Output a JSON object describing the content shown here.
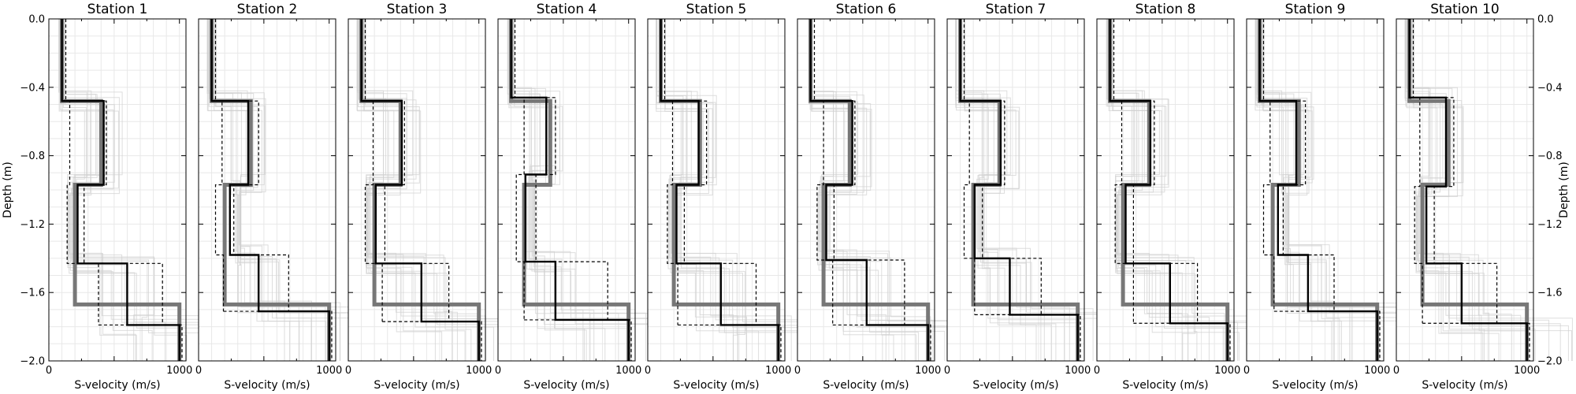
{
  "chart_data": {
    "type": "line",
    "xlabel": "S-velocity (m/s)",
    "ylabel": "Depth (m)",
    "xlim": [
      0,
      1050
    ],
    "ylim": [
      -2.0,
      0.0
    ],
    "x_ticks": [
      0,
      1000
    ],
    "y_ticks": [
      0.0,
      -0.4,
      -0.8,
      -1.2,
      -1.6,
      -2.0
    ],
    "y_tick_labels": [
      "0.0",
      "−0.4",
      "−0.8",
      "−1.2",
      "−1.6",
      "−2.0"
    ],
    "grid": true,
    "ylabel_sides": "left and right",
    "colors": {
      "true_model": "#777777",
      "best_model": "#000000",
      "bounds": "#000000",
      "ensemble": "#d0d0d0",
      "grid": "#e8e8e8"
    },
    "panels": [
      {
        "title": "Station 1",
        "true_model": {
          "velocity": [
            100,
            400,
            200,
            1000
          ],
          "interface_depth": [
            -0.48,
            -0.97,
            -1.67
          ]
        },
        "best_model": {
          "velocity": [
            100,
            420,
            220,
            600,
            1000
          ],
          "interface_depth": [
            -0.48,
            -0.97,
            -1.43,
            -1.79
          ]
        },
        "lower_bound": {
          "velocity": [
            100,
            160,
            140,
            380
          ],
          "interface_depth": [
            -0.48,
            -0.97,
            -1.43
          ]
        },
        "upper_bound": {
          "velocity": [
            130,
            440,
            270,
            870,
            1020
          ],
          "interface_depth": [
            -0.48,
            -0.97,
            -1.43,
            -1.79
          ]
        }
      },
      {
        "title": "Station 2",
        "true_model": {
          "velocity": [
            100,
            400,
            200,
            1000
          ],
          "interface_depth": [
            -0.48,
            -0.97,
            -1.67
          ]
        },
        "best_model": {
          "velocity": [
            100,
            380,
            240,
            460,
            1000
          ],
          "interface_depth": [
            -0.48,
            -0.97,
            -1.38,
            -1.71
          ]
        },
        "lower_bound": {
          "velocity": [
            100,
            180,
            130,
            190
          ],
          "interface_depth": [
            -0.48,
            -0.97,
            -1.38
          ]
        },
        "upper_bound": {
          "velocity": [
            130,
            460,
            270,
            690,
            1020
          ],
          "interface_depth": [
            -0.48,
            -0.97,
            -1.38,
            -1.71
          ]
        }
      },
      {
        "title": "Station 3",
        "true_model": {
          "velocity": [
            100,
            400,
            200,
            1000
          ],
          "interface_depth": [
            -0.48,
            -0.97,
            -1.67
          ]
        },
        "best_model": {
          "velocity": [
            100,
            410,
            210,
            560,
            1000
          ],
          "interface_depth": [
            -0.48,
            -0.97,
            -1.43,
            -1.77
          ]
        },
        "lower_bound": {
          "velocity": [
            100,
            190,
            130,
            260
          ],
          "interface_depth": [
            -0.48,
            -0.97,
            -1.43
          ]
        },
        "upper_bound": {
          "velocity": [
            130,
            430,
            280,
            770,
            1020
          ],
          "interface_depth": [
            -0.48,
            -0.97,
            -1.43,
            -1.77
          ]
        }
      },
      {
        "title": "Station 4",
        "true_model": {
          "velocity": [
            100,
            400,
            200,
            1000
          ],
          "interface_depth": [
            -0.48,
            -0.97,
            -1.67
          ]
        },
        "best_model": {
          "velocity": [
            100,
            370,
            210,
            440,
            1000
          ],
          "interface_depth": [
            -0.46,
            -0.91,
            -1.42,
            -1.76
          ]
        },
        "lower_bound": {
          "velocity": [
            100,
            200,
            140,
            200
          ],
          "interface_depth": [
            -0.46,
            -0.91,
            -1.42
          ]
        },
        "upper_bound": {
          "velocity": [
            130,
            440,
            290,
            840,
            1020
          ],
          "interface_depth": [
            -0.46,
            -0.91,
            -1.42,
            -1.76
          ]
        }
      },
      {
        "title": "Station 5",
        "true_model": {
          "velocity": [
            100,
            400,
            200,
            1000
          ],
          "interface_depth": [
            -0.48,
            -0.97,
            -1.67
          ]
        },
        "best_model": {
          "velocity": [
            100,
            390,
            220,
            560,
            1000
          ],
          "interface_depth": [
            -0.48,
            -0.97,
            -1.43,
            -1.79
          ]
        },
        "lower_bound": {
          "velocity": [
            100,
            190,
            150,
            230
          ],
          "interface_depth": [
            -0.48,
            -0.97,
            -1.43
          ]
        },
        "upper_bound": {
          "velocity": [
            130,
            450,
            280,
            830,
            1020
          ],
          "interface_depth": [
            -0.48,
            -0.97,
            -1.43,
            -1.79
          ]
        }
      },
      {
        "title": "Station 6",
        "true_model": {
          "velocity": [
            100,
            400,
            200,
            1000
          ],
          "interface_depth": [
            -0.48,
            -0.97,
            -1.67
          ]
        },
        "best_model": {
          "velocity": [
            100,
            420,
            220,
            530,
            1000
          ],
          "interface_depth": [
            -0.48,
            -0.97,
            -1.41,
            -1.79
          ]
        },
        "lower_bound": {
          "velocity": [
            100,
            200,
            150,
            270
          ],
          "interface_depth": [
            -0.48,
            -0.97,
            -1.41
          ]
        },
        "upper_bound": {
          "velocity": [
            130,
            440,
            280,
            820,
            1020
          ],
          "interface_depth": [
            -0.48,
            -0.97,
            -1.41,
            -1.79
          ]
        }
      },
      {
        "title": "Station 7",
        "true_model": {
          "velocity": [
            100,
            400,
            200,
            1000
          ],
          "interface_depth": [
            -0.48,
            -0.97,
            -1.67
          ]
        },
        "best_model": {
          "velocity": [
            100,
            410,
            210,
            480,
            1000
          ],
          "interface_depth": [
            -0.48,
            -0.97,
            -1.4,
            -1.73
          ]
        },
        "lower_bound": {
          "velocity": [
            100,
            170,
            130,
            210
          ],
          "interface_depth": [
            -0.48,
            -0.97,
            -1.4
          ]
        },
        "upper_bound": {
          "velocity": [
            130,
            440,
            270,
            720,
            1020
          ],
          "interface_depth": [
            -0.48,
            -0.97,
            -1.4,
            -1.73
          ]
        }
      },
      {
        "title": "Station 8",
        "true_model": {
          "velocity": [
            100,
            400,
            200,
            1000
          ],
          "interface_depth": [
            -0.48,
            -0.97,
            -1.67
          ]
        },
        "best_model": {
          "velocity": [
            100,
            410,
            220,
            560,
            1000
          ],
          "interface_depth": [
            -0.48,
            -0.97,
            -1.43,
            -1.78
          ]
        },
        "lower_bound": {
          "velocity": [
            100,
            190,
            140,
            280
          ],
          "interface_depth": [
            -0.48,
            -0.97,
            -1.43
          ]
        },
        "upper_bound": {
          "velocity": [
            130,
            440,
            280,
            770,
            1020
          ],
          "interface_depth": [
            -0.48,
            -0.97,
            -1.43,
            -1.78
          ]
        }
      },
      {
        "title": "Station 9",
        "true_model": {
          "velocity": [
            100,
            400,
            200,
            1000
          ],
          "interface_depth": [
            -0.48,
            -0.97,
            -1.67
          ]
        },
        "best_model": {
          "velocity": [
            100,
            380,
            240,
            470,
            1000
          ],
          "interface_depth": [
            -0.48,
            -0.97,
            -1.38,
            -1.71
          ]
        },
        "lower_bound": {
          "velocity": [
            100,
            180,
            130,
            210
          ],
          "interface_depth": [
            -0.48,
            -0.97,
            -1.38
          ]
        },
        "upper_bound": {
          "velocity": [
            130,
            450,
            280,
            670,
            1020
          ],
          "interface_depth": [
            -0.48,
            -0.97,
            -1.38,
            -1.71
          ]
        }
      },
      {
        "title": "Station 10",
        "true_model": {
          "velocity": [
            100,
            400,
            200,
            1000
          ],
          "interface_depth": [
            -0.48,
            -0.97,
            -1.67
          ]
        },
        "best_model": {
          "velocity": [
            100,
            380,
            230,
            500,
            1000
          ],
          "interface_depth": [
            -0.46,
            -0.98,
            -1.43,
            -1.78
          ]
        },
        "lower_bound": {
          "velocity": [
            100,
            180,
            140,
            200
          ],
          "interface_depth": [
            -0.46,
            -0.98,
            -1.43
          ]
        },
        "upper_bound": {
          "velocity": [
            130,
            440,
            290,
            770,
            1020
          ],
          "interface_depth": [
            -0.46,
            -0.98,
            -1.43,
            -1.78
          ]
        }
      }
    ]
  }
}
